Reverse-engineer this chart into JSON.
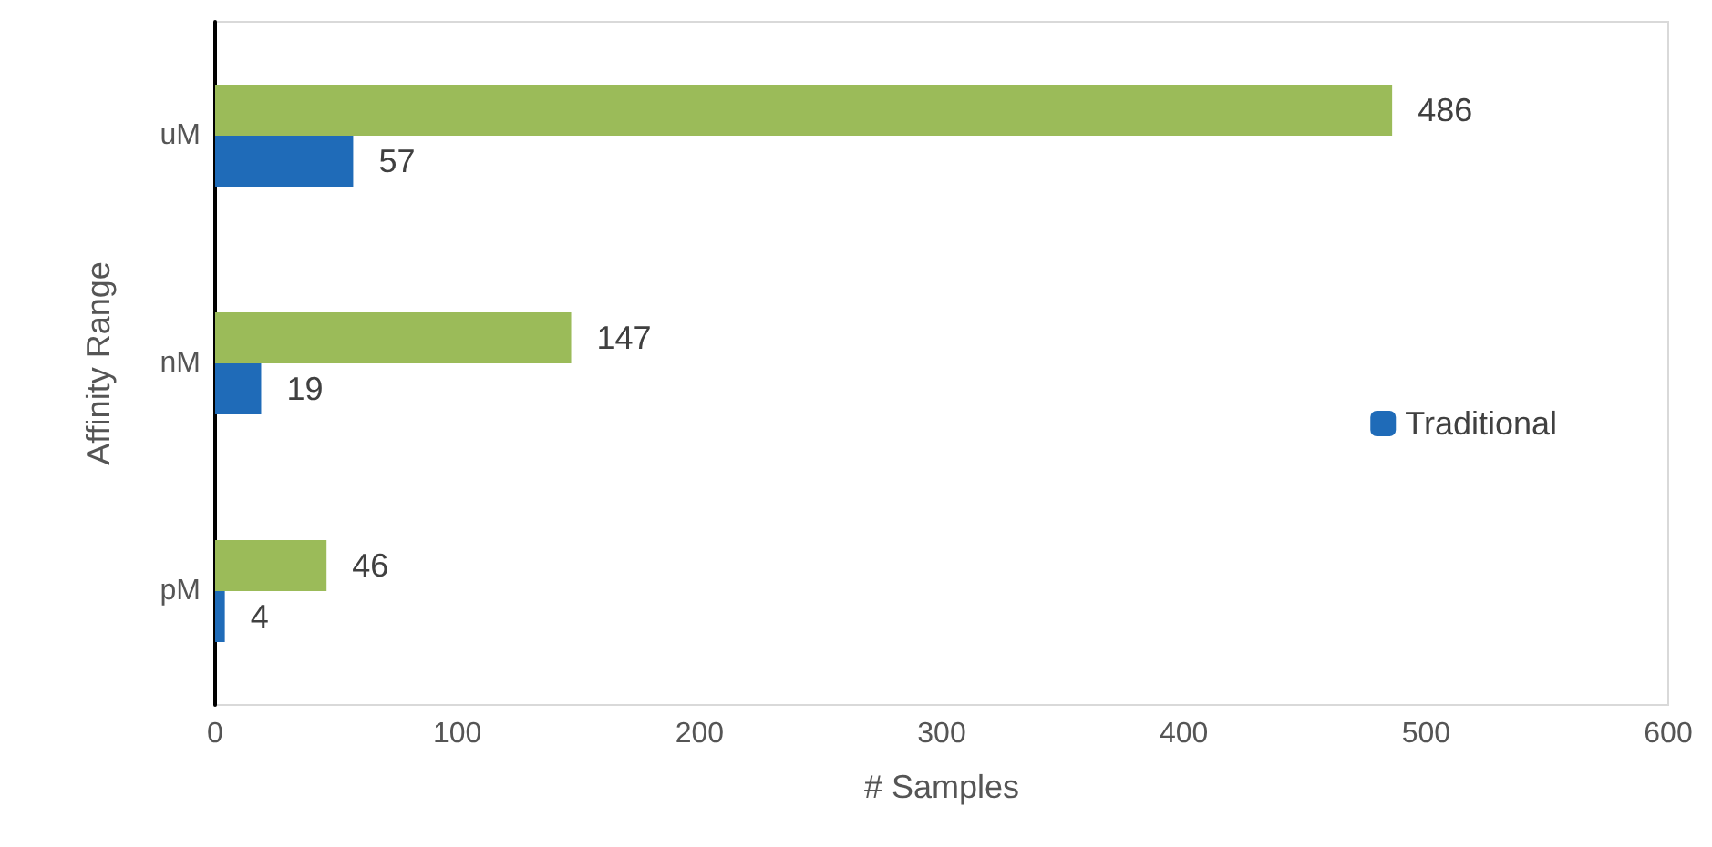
{
  "chart_data": {
    "type": "bar",
    "orientation": "horizontal",
    "xlabel": "# Samples",
    "ylabel": "Affinity Range",
    "categories": [
      "uM",
      "nM",
      "pM"
    ],
    "series": [
      {
        "color": "#9bbb59",
        "values": [
          486,
          147,
          46
        ]
      },
      {
        "name": "Traditional",
        "color": "#1f6bb8",
        "values": [
          57,
          19,
          4
        ]
      }
    ],
    "xlim": [
      0,
      600
    ],
    "xticks": [
      0,
      100,
      200,
      300,
      400,
      500,
      600
    ],
    "grid": false,
    "legend": "right",
    "data_labels": true
  }
}
